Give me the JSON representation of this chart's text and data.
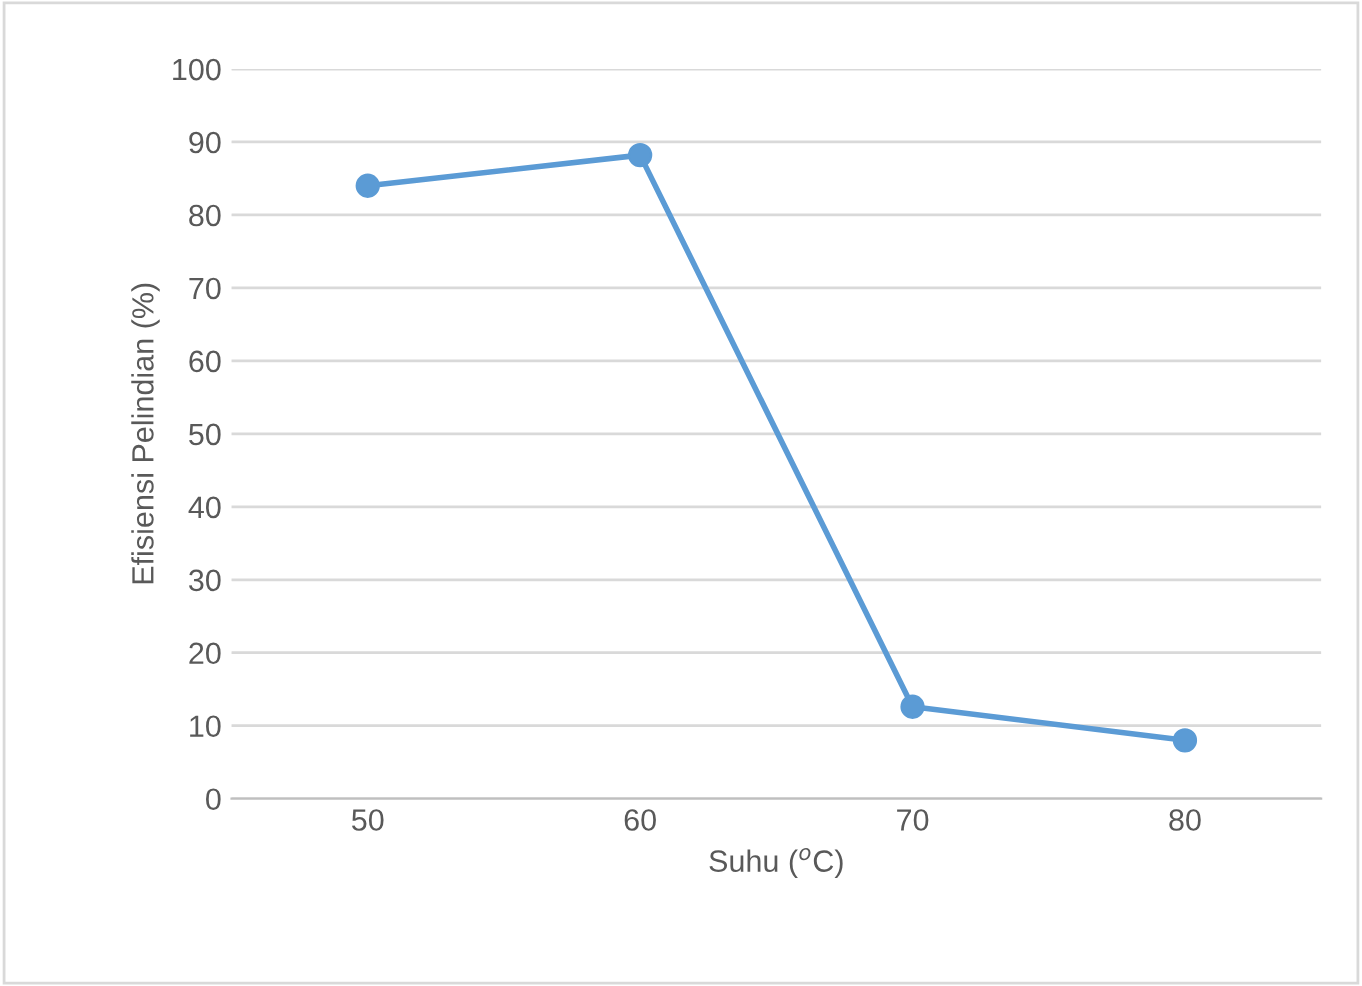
{
  "chart_data": {
    "type": "line",
    "xlabel": "Suhu ($^{o}$C)",
    "ylabel": "Efisiensi Pelindian (%)",
    "categories": [
      "50",
      "60",
      "70",
      "80"
    ],
    "series": [
      {
        "color": "#5b9bd5",
        "values": [
          84,
          88.2,
          12.6,
          8
        ]
      }
    ],
    "ylim": [
      0,
      100
    ],
    "yticks": [
      0,
      10,
      20,
      30,
      40,
      50,
      60,
      70,
      80,
      90,
      100
    ],
    "grid": "y",
    "marker": "circle",
    "line_style": "solid",
    "legend": false
  }
}
